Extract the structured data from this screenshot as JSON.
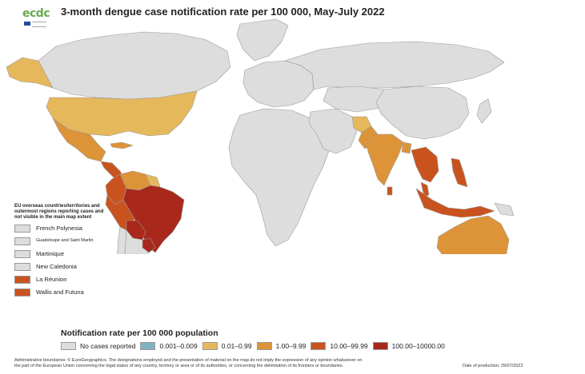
{
  "header": {
    "title": "3-month dengue case notification rate per 100 000, May-July 2022",
    "logo_text": "ecdc"
  },
  "colors": {
    "no_cases": "#dddddd",
    "r1": "#7fb3c0",
    "r2": "#e6b85c",
    "r3": "#dd9438",
    "r4": "#c9531e",
    "r5": "#a8281c",
    "ocean": "#ffffff",
    "border": "#9a9a9a"
  },
  "map": {
    "regions": [
      {
        "name": "Greenland",
        "class": "no_cases"
      },
      {
        "name": "Canada",
        "class": "no_cases"
      },
      {
        "name": "Alaska",
        "class": "r2"
      },
      {
        "name": "United States",
        "class": "r2"
      },
      {
        "name": "Mexico",
        "class": "r3"
      },
      {
        "name": "Central America",
        "class": "r4"
      },
      {
        "name": "Cuba",
        "class": "r3"
      },
      {
        "name": "Venezuela",
        "class": "r3"
      },
      {
        "name": "Colombia",
        "class": "r4"
      },
      {
        "name": "Guyana",
        "class": "r2"
      },
      {
        "name": "Brazil",
        "class": "r5"
      },
      {
        "name": "Peru",
        "class": "r4"
      },
      {
        "name": "Bolivia",
        "class": "r5"
      },
      {
        "name": "Paraguay",
        "class": "r5"
      },
      {
        "name": "Argentina",
        "class": "no_cases"
      },
      {
        "name": "Chile",
        "class": "no_cases"
      },
      {
        "name": "Uruguay",
        "class": "r2"
      },
      {
        "name": "Europe",
        "class": "no_cases"
      },
      {
        "name": "Russia",
        "class": "no_cases"
      },
      {
        "name": "Africa",
        "class": "no_cases"
      },
      {
        "name": "Middle East",
        "class": "no_cases"
      },
      {
        "name": "Central Asia",
        "class": "no_cases"
      },
      {
        "name": "China",
        "class": "no_cases"
      },
      {
        "name": "Afghanistan",
        "class": "r2"
      },
      {
        "name": "Pakistan",
        "class": "r3"
      },
      {
        "name": "India",
        "class": "r3"
      },
      {
        "name": "Sri Lanka",
        "class": "r4"
      },
      {
        "name": "Bangladesh",
        "class": "r3"
      },
      {
        "name": "Mainland Southeast Asia",
        "class": "r4"
      },
      {
        "name": "Malaysia",
        "class": "r4"
      },
      {
        "name": "Indonesia",
        "class": "r4"
      },
      {
        "name": "Philippines",
        "class": "r4"
      },
      {
        "name": "Papua New Guinea",
        "class": "no_cases"
      },
      {
        "name": "Australia",
        "class": "r3"
      },
      {
        "name": "New Zealand",
        "class": "no_cases"
      },
      {
        "name": "Japan",
        "class": "no_cases"
      }
    ]
  },
  "eu_legend": {
    "title": "EU overseas countries/territories and outermost regions reporting cases and not visible in the main map extent",
    "items": [
      {
        "label": "French Polynesia",
        "class": "no_cases"
      },
      {
        "label": "Guadeloupe and Saint Martin",
        "class": "no_cases"
      },
      {
        "label": "Martinique",
        "class": "no_cases"
      },
      {
        "label": "New Caledonia",
        "class": "no_cases"
      },
      {
        "label": "La Réunion",
        "class": "r4"
      },
      {
        "label": "Wallis and Futuna",
        "class": "r4"
      }
    ]
  },
  "legend": {
    "title": "Notification rate per 100 000 population",
    "items": [
      {
        "label": "No cases reported",
        "class": "no_cases"
      },
      {
        "label": "0.001–0.009",
        "class": "r1"
      },
      {
        "label": "0.01–0.99",
        "class": "r2"
      },
      {
        "label": "1.00–9.99",
        "class": "r3"
      },
      {
        "label": "10.00–99.99",
        "class": "r4"
      },
      {
        "label": "100.00–10000.00",
        "class": "r5"
      }
    ]
  },
  "footer": {
    "line1": "Administrative boundaries: © EuroGeographics. The designations employed and the presentation of material on the map do not imply the expression of any opinion whatsoever on",
    "line2": "the part of the European Union concerning the legal status of any country, territory or area or of its authorities, or concerning the delimitation of its frontiers or boundaries.",
    "date": "Date of production: 29/07/2022"
  }
}
